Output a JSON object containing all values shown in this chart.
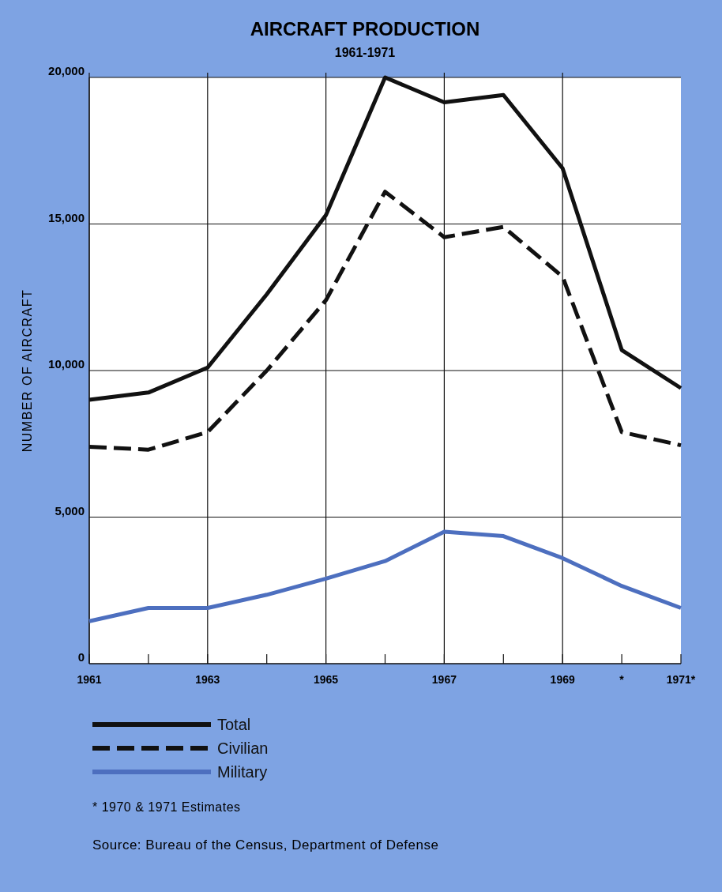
{
  "chart_data": {
    "type": "line",
    "title": "AIRCRAFT PRODUCTION",
    "subtitle": "1961-1971",
    "ylabel": "NUMBER OF AIRCRAFT",
    "x": [
      1961,
      1962,
      1963,
      1964,
      1965,
      1966,
      1967,
      1968,
      1969,
      1970,
      1971
    ],
    "xlim": [
      1961,
      1971
    ],
    "xticks": [
      1961,
      {
        "value": 1962,
        "label": null
      },
      1963,
      {
        "value": 1964,
        "label": null
      },
      1965,
      {
        "value": 1966,
        "label": null
      },
      1967,
      {
        "value": 1968,
        "label": null
      },
      1969,
      {
        "value": 1970,
        "label": "*"
      },
      {
        "value": 1971,
        "label": "1971*"
      }
    ],
    "ylim": [
      0,
      20000
    ],
    "yticks": [
      0,
      {
        "value": 5000,
        "label": "5,000"
      },
      {
        "value": 10000,
        "label": "10,000"
      },
      {
        "value": 15000,
        "label": "15,000"
      },
      {
        "value": 20000,
        "label": "20,000"
      }
    ],
    "grid": true,
    "legend": "bottom",
    "marker": "none",
    "series": [
      {
        "name": "Total",
        "color": "#111111",
        "line_style": "solid",
        "values": [
          9000,
          9250,
          10100,
          12600,
          15300,
          20000,
          19150,
          19400,
          16900,
          10700,
          9400
        ]
      },
      {
        "name": "Civilian",
        "color": "#111111",
        "line_style": "dashed",
        "values": [
          7400,
          7300,
          7900,
          10000,
          12400,
          16100,
          14550,
          14900,
          13200,
          7900,
          7450
        ]
      },
      {
        "name": "Military",
        "color": "#4d6fbf",
        "line_style": "solid",
        "values": [
          1450,
          1900,
          1900,
          2350,
          2900,
          3500,
          4500,
          4350,
          3600,
          2650,
          1900
        ]
      }
    ],
    "annotations": [
      "* 1970 & 1971 Estimates",
      "Source: Bureau of the Census, Department of Defense"
    ]
  }
}
